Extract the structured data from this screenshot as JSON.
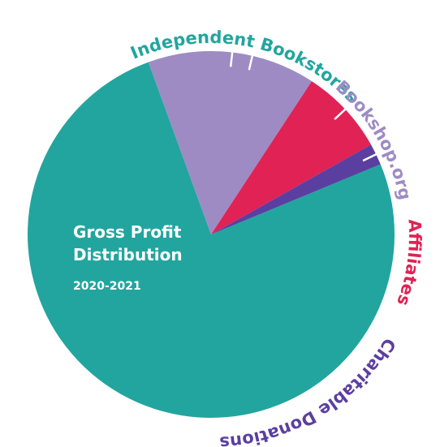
{
  "chart_data": {
    "type": "pie",
    "title": "Gross Profit Distribution",
    "subtitle": "2020-2021",
    "slices": [
      {
        "label": "Independent Bookstores",
        "value": 75.7,
        "color": "#22a59f",
        "label_color": "#22a59f"
      },
      {
        "label": "Bookshop.org",
        "value": 14.8,
        "color": "#9e8bc3",
        "label_color": "#9e8bc3"
      },
      {
        "label": "Affiliates",
        "value": 7.6,
        "color": "#e02254",
        "label_color": "#e02254"
      },
      {
        "label": "Charitable Donations",
        "value": 1.9,
        "color": "#5b3fa0",
        "label_color": "#5b3fa0"
      }
    ]
  }
}
